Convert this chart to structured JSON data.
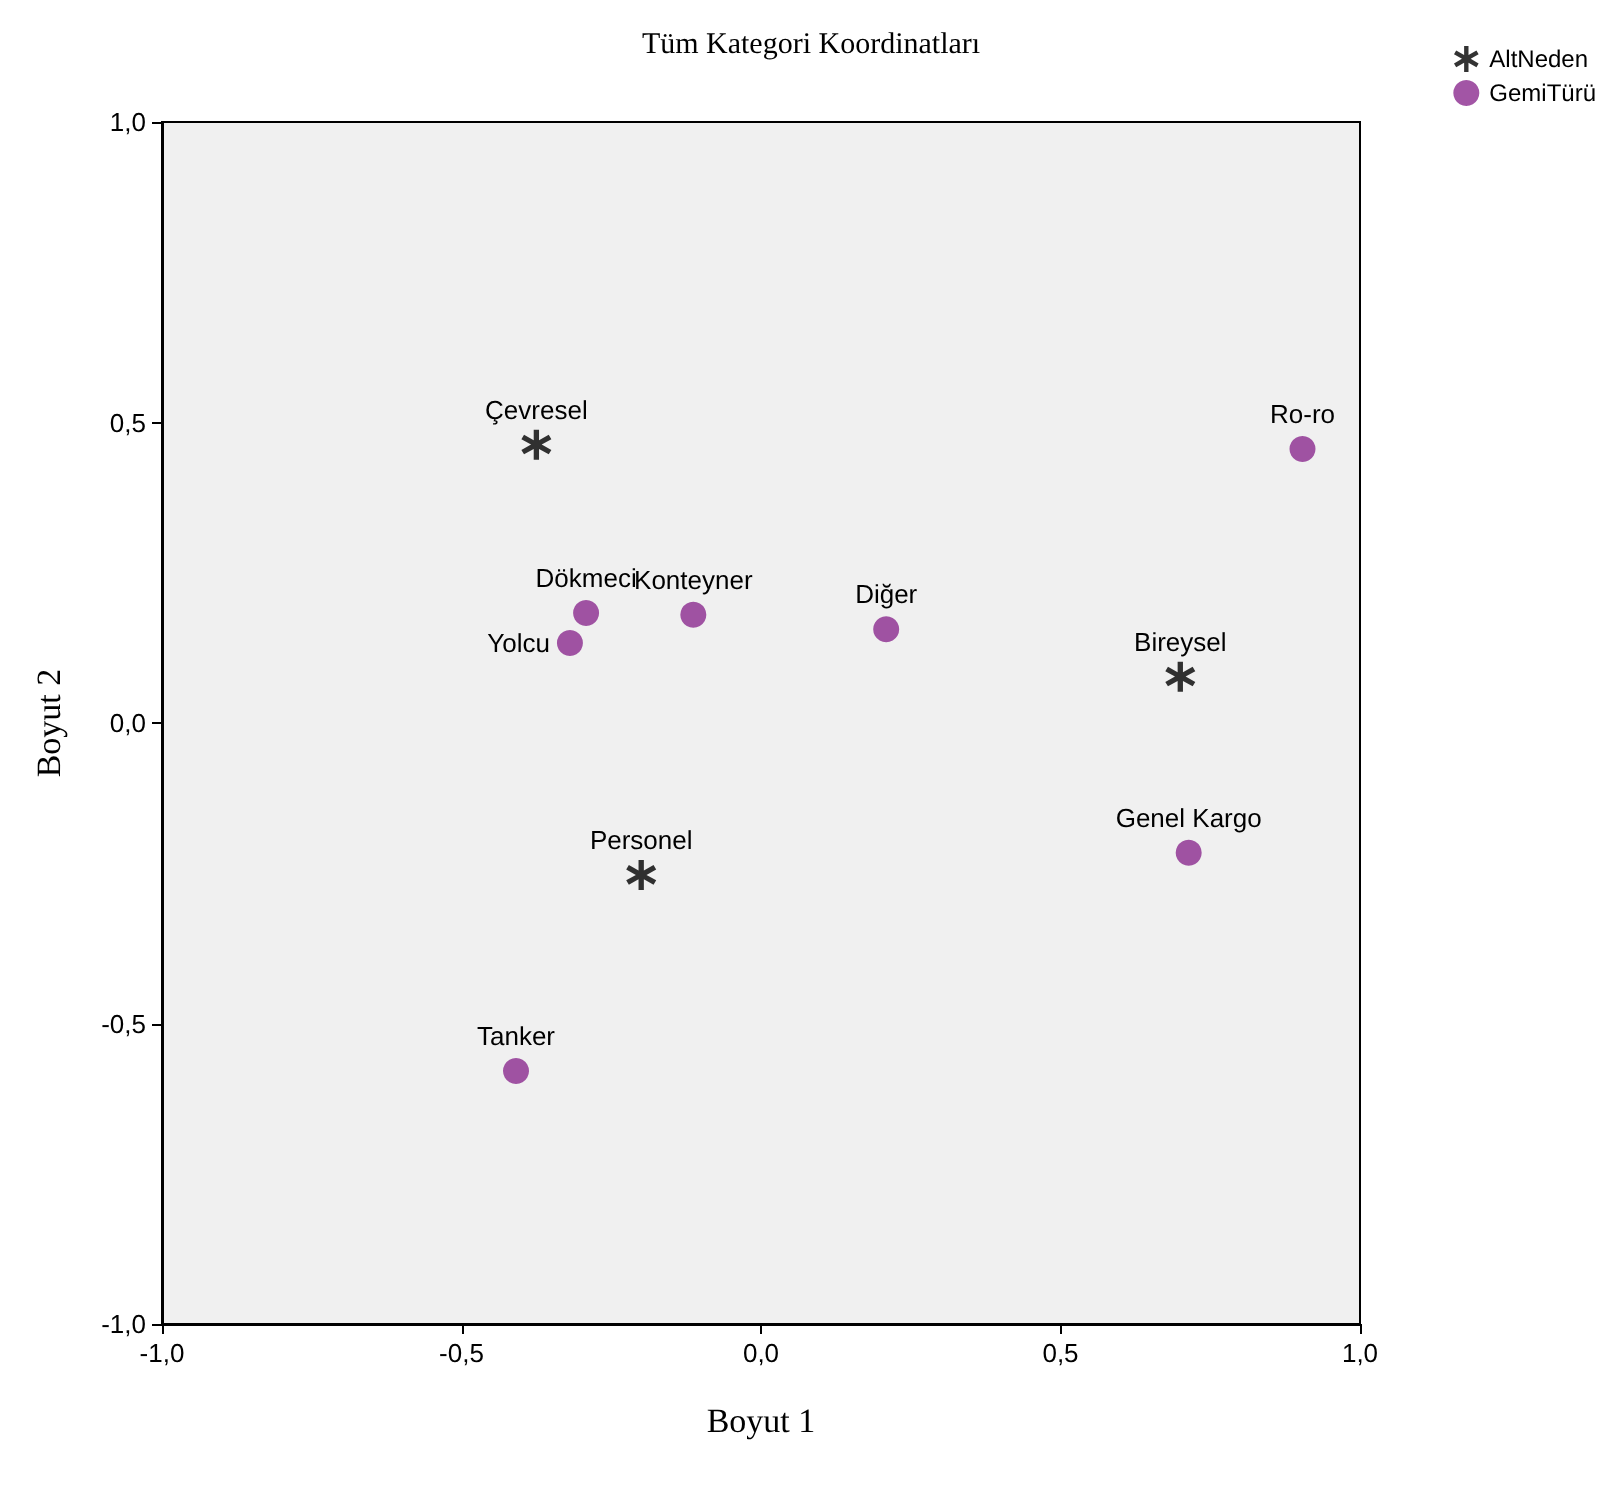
{
  "chart_data": {
    "type": "scatter",
    "title": "Tüm Kategori Koordinatları",
    "xlabel": "Boyut 1",
    "ylabel": "Boyut 2",
    "xlim": [
      -1,
      1
    ],
    "ylim": [
      -1,
      1
    ],
    "xticks": [
      {
        "value": -1,
        "label": "-1,0"
      },
      {
        "value": -0.5,
        "label": "-0,5"
      },
      {
        "value": 0,
        "label": "0,0"
      },
      {
        "value": 0.5,
        "label": "0,5"
      },
      {
        "value": 1,
        "label": "1,0"
      }
    ],
    "yticks": [
      {
        "value": -1,
        "label": "-1,0"
      },
      {
        "value": -0.5,
        "label": "-0,5"
      },
      {
        "value": 0,
        "label": "0,0"
      },
      {
        "value": 0.5,
        "label": "0,5"
      },
      {
        "value": 1,
        "label": "1,0"
      }
    ],
    "grid": false,
    "legend": "top right",
    "series": [
      {
        "name": "AltNeden",
        "color": "#000000",
        "marker": "star",
        "x": [
          -0.375,
          0.7,
          -0.2
        ],
        "values": [
          0.463,
          0.077,
          -0.253
        ]
      },
      {
        "name": "GemiTürü",
        "color": "#8b2a8e",
        "marker": "circle",
        "x": [
          0.904,
          -0.292,
          -0.319,
          -0.113,
          0.209,
          0.714,
          -0.409
        ],
        "values": [
          0.456,
          0.183,
          0.133,
          0.18,
          0.156,
          -0.216,
          -0.579
        ]
      }
    ],
    "annotations": [
      {
        "text": "Çevresel",
        "x": -0.375,
        "y": 0.463
      },
      {
        "text": "Bireysel",
        "x": 0.7,
        "y": 0.077
      },
      {
        "text": "Personel",
        "x": -0.2,
        "y": -0.253
      },
      {
        "text": "Ro-ro",
        "x": 0.904,
        "y": 0.456
      },
      {
        "text": "Dökmeci",
        "x": -0.292,
        "y": 0.183
      },
      {
        "text": "Yolcu",
        "x": -0.319,
        "y": 0.133
      },
      {
        "text": "Konteyner",
        "x": -0.113,
        "y": 0.18
      },
      {
        "text": "Diğer",
        "x": 0.209,
        "y": 0.156
      },
      {
        "text": "Genel Kargo",
        "x": 0.714,
        "y": -0.216
      },
      {
        "text": "Tanker",
        "x": -0.409,
        "y": -0.579
      }
    ]
  }
}
